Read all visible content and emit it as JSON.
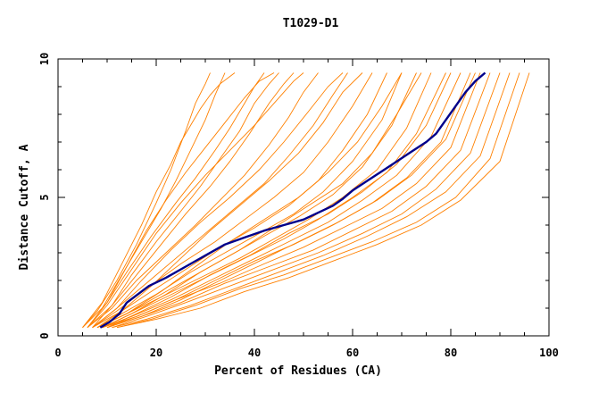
{
  "chart_data": {
    "type": "line",
    "title": "T1029-D1",
    "xlabel": "Percent of Residues (CA)",
    "ylabel": "Distance Cutoff, A",
    "xlim": [
      0,
      100
    ],
    "ylim": [
      0,
      10
    ],
    "x_ticks": [
      "0",
      "20",
      "40",
      "60",
      "80",
      "100"
    ],
    "x_tick_values": [
      0,
      20,
      40,
      60,
      80,
      100
    ],
    "y_ticks": [
      "0",
      "5",
      "10"
    ],
    "y_tick_values": [
      0,
      5,
      10
    ],
    "colors": {
      "models": "#ff8000",
      "highlight": "#00008b",
      "axis": "#000000"
    },
    "highlight_series": {
      "x": [
        8.6,
        10.5,
        12.5,
        14.0,
        15.5,
        18.5,
        22.0,
        26.0,
        30.0,
        34.0,
        38.0,
        42.0,
        46.0,
        50.0,
        53.0,
        56.0,
        58.0,
        60.0,
        63.0,
        66.0,
        69.0,
        72.0,
        75.0,
        77.0,
        79.0,
        81.0,
        83.0,
        85.0,
        87.0
      ],
      "y": [
        0.3,
        0.5,
        0.8,
        1.2,
        1.4,
        1.8,
        2.1,
        2.5,
        2.9,
        3.3,
        3.55,
        3.8,
        4.0,
        4.2,
        4.45,
        4.7,
        4.95,
        5.25,
        5.6,
        5.95,
        6.3,
        6.65,
        7.0,
        7.3,
        7.8,
        8.3,
        8.8,
        9.2,
        9.5
      ]
    },
    "model_curves": [
      {
        "x": [
          5,
          9,
          13,
          17,
          20,
          23,
          25,
          27,
          29,
          31,
          33,
          36
        ],
        "y": [
          0.3,
          1.2,
          2.6,
          4.0,
          5.2,
          6.2,
          7.0,
          7.6,
          8.2,
          8.7,
          9.1,
          9.5
        ]
      },
      {
        "x": [
          5,
          9,
          13,
          17,
          21,
          24,
          27,
          30,
          32,
          34
        ],
        "y": [
          0.3,
          1.0,
          2.2,
          3.4,
          4.6,
          5.6,
          6.7,
          7.8,
          8.7,
          9.5
        ]
      },
      {
        "x": [
          5,
          8,
          12,
          16,
          20,
          23,
          26,
          28,
          30,
          31
        ],
        "y": [
          0.3,
          0.9,
          2.0,
          3.3,
          4.8,
          6.0,
          7.4,
          8.4,
          9.1,
          9.5
        ]
      },
      {
        "x": [
          6,
          10,
          14,
          19,
          24,
          28,
          32,
          35,
          38,
          40,
          42
        ],
        "y": [
          0.3,
          1.2,
          2.3,
          3.6,
          4.8,
          5.7,
          6.7,
          7.5,
          8.4,
          9.0,
          9.5
        ]
      },
      {
        "x": [
          6,
          11,
          16,
          21,
          26,
          31,
          35,
          39,
          43,
          46,
          48
        ],
        "y": [
          0.3,
          1.1,
          2.2,
          3.3,
          4.4,
          5.4,
          6.3,
          7.3,
          8.4,
          9.1,
          9.5
        ]
      },
      {
        "x": [
          6,
          11,
          16,
          22,
          28,
          33,
          38,
          43,
          47,
          50,
          53
        ],
        "y": [
          0.3,
          1.0,
          2.0,
          3.0,
          4.0,
          4.9,
          5.8,
          6.9,
          7.9,
          8.8,
          9.5
        ]
      },
      {
        "x": [
          7,
          12,
          18,
          24,
          30,
          36,
          42,
          47,
          52,
          56,
          59
        ],
        "y": [
          0.3,
          1.0,
          1.9,
          2.8,
          3.7,
          4.6,
          5.5,
          6.5,
          7.6,
          8.7,
          9.5
        ]
      },
      {
        "x": [
          7,
          12,
          18,
          25,
          32,
          38,
          44,
          50,
          55,
          60,
          64
        ],
        "y": [
          0.3,
          0.9,
          1.7,
          2.6,
          3.4,
          4.2,
          5.0,
          5.9,
          7.0,
          8.3,
          9.5
        ]
      },
      {
        "x": [
          7,
          13,
          19,
          26,
          33,
          40,
          47,
          53,
          58,
          63,
          67
        ],
        "y": [
          0.3,
          0.9,
          1.6,
          2.4,
          3.2,
          3.9,
          4.7,
          5.6,
          6.7,
          8.0,
          9.5
        ]
      },
      {
        "x": [
          8,
          13,
          20,
          27,
          34,
          41,
          48,
          54,
          60,
          66,
          70
        ],
        "y": [
          0.3,
          0.8,
          1.5,
          2.3,
          3.0,
          3.7,
          4.4,
          5.2,
          6.3,
          7.8,
          9.5
        ]
      },
      {
        "x": [
          8,
          14,
          21,
          28,
          35,
          42,
          49,
          56,
          62,
          68,
          73
        ],
        "y": [
          0.3,
          0.8,
          1.5,
          2.2,
          2.9,
          3.6,
          4.3,
          5.1,
          6.1,
          7.6,
          9.5
        ]
      },
      {
        "x": [
          8,
          14,
          21,
          29,
          37,
          44,
          51,
          58,
          65,
          71,
          76
        ],
        "y": [
          0.3,
          0.8,
          1.4,
          2.1,
          2.8,
          3.5,
          4.2,
          5.0,
          6.0,
          7.5,
          9.5
        ]
      },
      {
        "x": [
          9,
          15,
          22,
          30,
          38,
          46,
          53,
          60,
          67,
          73,
          79
        ],
        "y": [
          0.3,
          0.8,
          1.4,
          2.1,
          2.8,
          3.5,
          4.2,
          5.0,
          5.9,
          7.3,
          9.5
        ]
      },
      {
        "x": [
          9,
          15,
          23,
          31,
          39,
          47,
          55,
          62,
          69,
          76,
          82
        ],
        "y": [
          0.3,
          0.7,
          1.3,
          2.0,
          2.7,
          3.4,
          4.1,
          4.9,
          5.8,
          7.2,
          9.5
        ]
      },
      {
        "x": [
          9,
          16,
          24,
          32,
          40,
          48,
          56,
          64,
          71,
          78,
          84
        ],
        "y": [
          0.3,
          0.7,
          1.3,
          2.0,
          2.7,
          3.3,
          4.0,
          4.8,
          5.7,
          7.0,
          9.5
        ]
      },
      {
        "x": [
          10,
          16,
          24,
          33,
          42,
          50,
          58,
          66,
          73,
          80,
          86
        ],
        "y": [
          0.3,
          0.7,
          1.3,
          1.9,
          2.6,
          3.2,
          3.9,
          4.6,
          5.5,
          6.8,
          9.5
        ]
      },
      {
        "x": [
          10,
          17,
          25,
          34,
          43,
          52,
          60,
          68,
          75,
          82,
          88
        ],
        "y": [
          0.3,
          0.7,
          1.2,
          1.9,
          2.5,
          3.1,
          3.8,
          4.5,
          5.4,
          6.7,
          9.5
        ]
      },
      {
        "x": [
          11,
          18,
          26,
          35,
          44,
          53,
          62,
          70,
          77,
          84,
          90
        ],
        "y": [
          0.3,
          0.7,
          1.2,
          1.8,
          2.4,
          3.0,
          3.7,
          4.4,
          5.3,
          6.6,
          9.5
        ]
      },
      {
        "x": [
          11,
          18,
          27,
          36,
          45,
          54,
          63,
          71,
          79,
          86,
          92
        ],
        "y": [
          0.3,
          0.6,
          1.1,
          1.7,
          2.3,
          2.9,
          3.6,
          4.3,
          5.2,
          6.5,
          9.5
        ]
      },
      {
        "x": [
          12,
          19,
          28,
          37,
          46,
          55,
          64,
          73,
          81,
          88,
          94
        ],
        "y": [
          0.3,
          0.6,
          1.1,
          1.7,
          2.2,
          2.8,
          3.4,
          4.1,
          5.0,
          6.4,
          9.5
        ]
      },
      {
        "x": [
          12,
          20,
          29,
          38,
          47,
          56,
          65,
          74,
          82,
          90,
          96
        ],
        "y": [
          0.3,
          0.6,
          1.0,
          1.6,
          2.1,
          2.7,
          3.3,
          4.0,
          4.9,
          6.3,
          9.5
        ]
      },
      {
        "x": [
          6,
          10,
          15,
          20,
          25,
          30,
          35,
          40,
          45,
          48,
          50
        ],
        "y": [
          0.3,
          1.1,
          2.4,
          3.7,
          4.8,
          5.8,
          6.7,
          7.6,
          8.6,
          9.2,
          9.5
        ]
      },
      {
        "x": [
          6,
          10,
          14,
          18,
          22,
          26,
          30,
          34,
          38,
          41,
          44
        ],
        "y": [
          0.3,
          1.2,
          2.5,
          3.8,
          4.9,
          5.9,
          6.8,
          7.7,
          8.6,
          9.2,
          9.5
        ]
      },
      {
        "x": [
          7,
          11,
          15,
          20,
          25,
          29,
          33,
          37,
          40,
          43,
          45
        ],
        "y": [
          0.3,
          1.1,
          2.2,
          3.4,
          4.5,
          5.4,
          6.4,
          7.4,
          8.4,
          9.1,
          9.5
        ]
      },
      {
        "x": [
          7,
          12,
          17,
          23,
          29,
          35,
          41,
          46,
          51,
          55,
          58
        ],
        "y": [
          0.3,
          1.0,
          2.0,
          3.1,
          4.1,
          5.0,
          6.0,
          7.0,
          8.1,
          9.0,
          9.5
        ]
      },
      {
        "x": [
          8,
          13,
          19,
          25,
          31,
          37,
          43,
          49,
          54,
          58,
          62
        ],
        "y": [
          0.3,
          0.9,
          1.8,
          2.8,
          3.8,
          4.7,
          5.6,
          6.6,
          7.7,
          8.8,
          9.5
        ]
      },
      {
        "x": [
          8,
          14,
          21,
          28,
          35,
          42,
          49,
          55,
          61,
          66,
          70
        ],
        "y": [
          0.3,
          0.8,
          1.6,
          2.5,
          3.4,
          4.2,
          5.0,
          5.9,
          7.0,
          8.3,
          9.5
        ]
      },
      {
        "x": [
          9,
          15,
          22,
          29,
          37,
          44,
          51,
          58,
          64,
          69,
          74
        ],
        "y": [
          0.3,
          0.8,
          1.5,
          2.3,
          3.1,
          3.9,
          4.7,
          5.5,
          6.6,
          8.0,
          9.5
        ]
      },
      {
        "x": [
          10,
          16,
          23,
          31,
          39,
          47,
          55,
          62,
          69,
          75,
          80
        ],
        "y": [
          0.3,
          0.8,
          1.4,
          2.2,
          2.9,
          3.7,
          4.4,
          5.2,
          6.2,
          7.6,
          9.5
        ]
      },
      {
        "x": [
          10,
          17,
          25,
          33,
          41,
          49,
          57,
          65,
          72,
          79,
          85
        ],
        "y": [
          0.3,
          0.7,
          1.3,
          2.0,
          2.7,
          3.4,
          4.1,
          4.9,
          5.8,
          7.1,
          9.5
        ]
      }
    ]
  }
}
